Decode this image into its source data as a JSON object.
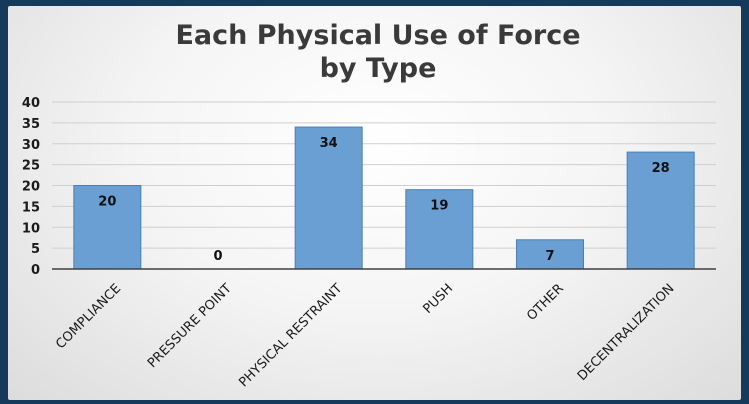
{
  "chart_data": {
    "type": "bar",
    "title_lines": [
      "Each Physical Use of Force",
      "by Type"
    ],
    "categories": [
      "COMPLIANCE",
      "PRESSURE POINT",
      "PHYSICAL RESTRAINT",
      "PUSH",
      "OTHER",
      "DECENTRALIZATION"
    ],
    "values": [
      20,
      0,
      34,
      19,
      7,
      28
    ],
    "ylim": [
      0,
      40
    ],
    "yticks": [
      0,
      5,
      10,
      15,
      20,
      25,
      30,
      35,
      40
    ],
    "grid": true,
    "legend": "none",
    "xlabel": "",
    "ylabel": ""
  },
  "colors": {
    "bar_fill": "#6a9fd4",
    "bar_stroke": "#4a7fb5",
    "gridline": "#cfcfcf",
    "axis": "#404040",
    "background": "#163a5c"
  }
}
